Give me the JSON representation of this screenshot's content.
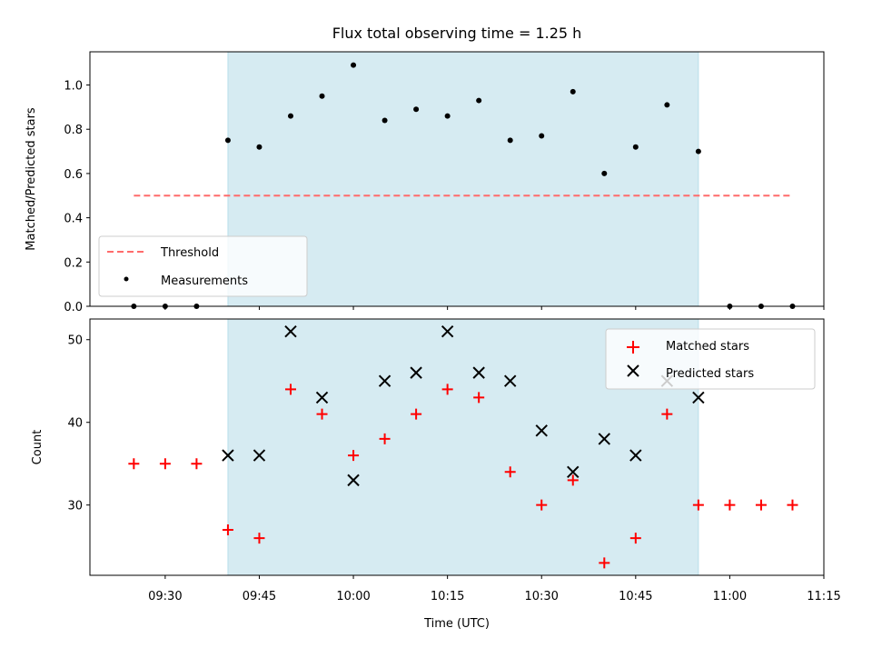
{
  "chart_data": {
    "type": "scatter",
    "title": "Flux total observing time = 1.25 h",
    "xlabel": "Time (UTC)",
    "x_ticks": [
      "09:30",
      "09:45",
      "10:00",
      "10:15",
      "10:30",
      "10:45",
      "11:00",
      "11:15"
    ],
    "xlim": [
      "09:18",
      "11:15"
    ],
    "highlight_span": {
      "start": "09:40",
      "end": "10:55",
      "color": "#add8e6"
    },
    "times": [
      "09:25",
      "09:30",
      "09:35",
      "09:40",
      "09:45",
      "09:50",
      "09:55",
      "10:00",
      "10:05",
      "10:10",
      "10:15",
      "10:20",
      "10:25",
      "10:30",
      "10:35",
      "10:40",
      "10:45",
      "10:50",
      "10:55",
      "11:00",
      "11:05",
      "11:10"
    ],
    "panels": [
      {
        "ylabel": "Matched/Predicted stars",
        "ylim": [
          0,
          1.15
        ],
        "y_ticks": [
          "0.0",
          "0.2",
          "0.4",
          "0.6",
          "0.8",
          "1.0"
        ],
        "legend_position": "lower-left",
        "series": [
          {
            "name": "Threshold",
            "kind": "dashed-line",
            "color": "#ff6b6b",
            "x": [
              "09:25",
              "11:10"
            ],
            "values": [
              0.5,
              0.5
            ]
          },
          {
            "name": "Measurements",
            "kind": "dot",
            "color": "#000000",
            "x": [
              "09:25",
              "09:30",
              "09:35",
              "09:40",
              "09:45",
              "09:50",
              "09:55",
              "10:00",
              "10:05",
              "10:10",
              "10:15",
              "10:20",
              "10:25",
              "10:30",
              "10:35",
              "10:40",
              "10:45",
              "10:50",
              "10:55",
              "11:00",
              "11:05",
              "11:10"
            ],
            "values": [
              0.0,
              0.0,
              0.0,
              0.75,
              0.72,
              0.86,
              0.95,
              1.09,
              0.84,
              0.89,
              0.86,
              0.93,
              0.75,
              0.77,
              0.97,
              0.6,
              0.72,
              0.91,
              0.7,
              0.0,
              0.0,
              0.0
            ]
          }
        ]
      },
      {
        "ylabel": "Count",
        "ylim": [
          21.5,
          52.5
        ],
        "y_ticks": [
          "30",
          "40",
          "50"
        ],
        "legend_position": "upper-right",
        "series": [
          {
            "name": "Matched stars",
            "kind": "plus",
            "color": "#ff0000",
            "x": [
              "09:25",
              "09:30",
              "09:35",
              "09:40",
              "09:45",
              "09:50",
              "09:55",
              "10:00",
              "10:05",
              "10:10",
              "10:15",
              "10:20",
              "10:25",
              "10:30",
              "10:35",
              "10:40",
              "10:45",
              "10:50",
              "10:55",
              "11:00",
              "11:05",
              "11:10"
            ],
            "values": [
              35,
              35,
              35,
              27,
              26,
              44,
              41,
              36,
              38,
              41,
              44,
              43,
              34,
              30,
              33,
              23,
              26,
              41,
              30,
              30,
              30,
              30
            ]
          },
          {
            "name": "Predicted stars",
            "kind": "x",
            "color": "#000000",
            "x": [
              "09:40",
              "09:45",
              "09:50",
              "09:55",
              "10:00",
              "10:05",
              "10:10",
              "10:15",
              "10:20",
              "10:25",
              "10:30",
              "10:35",
              "10:40",
              "10:45",
              "10:50",
              "10:55"
            ],
            "values": [
              36,
              36,
              51,
              43,
              33,
              45,
              46,
              51,
              46,
              45,
              39,
              34,
              38,
              36,
              45,
              43
            ]
          }
        ]
      }
    ]
  }
}
